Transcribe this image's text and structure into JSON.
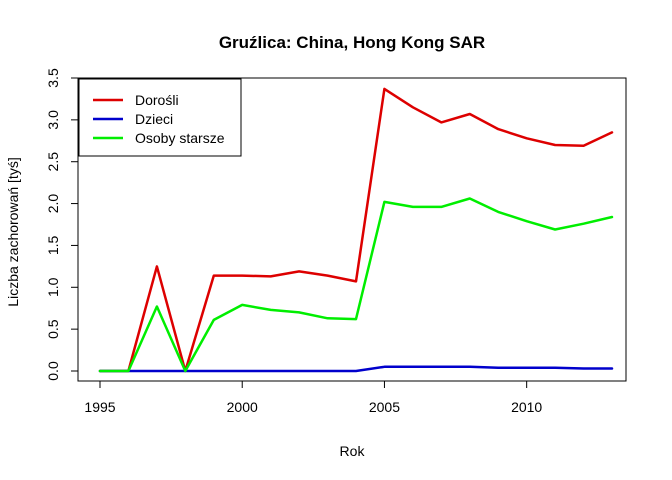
{
  "chart_data": {
    "type": "line",
    "title": "Gruźlica: China, Hong Kong SAR",
    "xlabel": "Rok",
    "ylabel": "Liczba zachorowań [tyś]",
    "xlim": [
      1995,
      2013
    ],
    "ylim": [
      0,
      3.5
    ],
    "x_ticks": [
      "1995",
      "2000",
      "2005",
      "2010"
    ],
    "y_ticks": [
      "0.0",
      "0.5",
      "1.0",
      "1.5",
      "2.0",
      "2.5",
      "3.0",
      "3.5"
    ],
    "grid": false,
    "legend_position": "top-left",
    "x": [
      1995,
      1996,
      1997,
      1998,
      1999,
      2000,
      2001,
      2002,
      2003,
      2004,
      2005,
      2006,
      2007,
      2008,
      2009,
      2010,
      2011,
      2012,
      2013
    ],
    "series": [
      {
        "name": "Dorośli",
        "color": "#dd0000",
        "values": [
          0,
          0,
          1.25,
          0,
          1.14,
          1.14,
          1.13,
          1.19,
          1.14,
          1.07,
          3.37,
          3.15,
          2.97,
          3.07,
          2.89,
          2.78,
          2.7,
          2.69,
          2.85
        ]
      },
      {
        "name": "Dzieci",
        "color": "#0000cc",
        "values": [
          0,
          0,
          0,
          0,
          0,
          0,
          0,
          0,
          0,
          0,
          0.05,
          0.05,
          0.05,
          0.05,
          0.04,
          0.04,
          0.04,
          0.03,
          0.03
        ]
      },
      {
        "name": "Osoby starsze",
        "color": "#00ee00",
        "values": [
          0,
          0,
          0.77,
          0,
          0.61,
          0.79,
          0.73,
          0.7,
          0.63,
          0.62,
          2.02,
          1.96,
          1.96,
          2.06,
          1.9,
          1.79,
          1.69,
          1.76,
          1.84
        ]
      }
    ]
  }
}
